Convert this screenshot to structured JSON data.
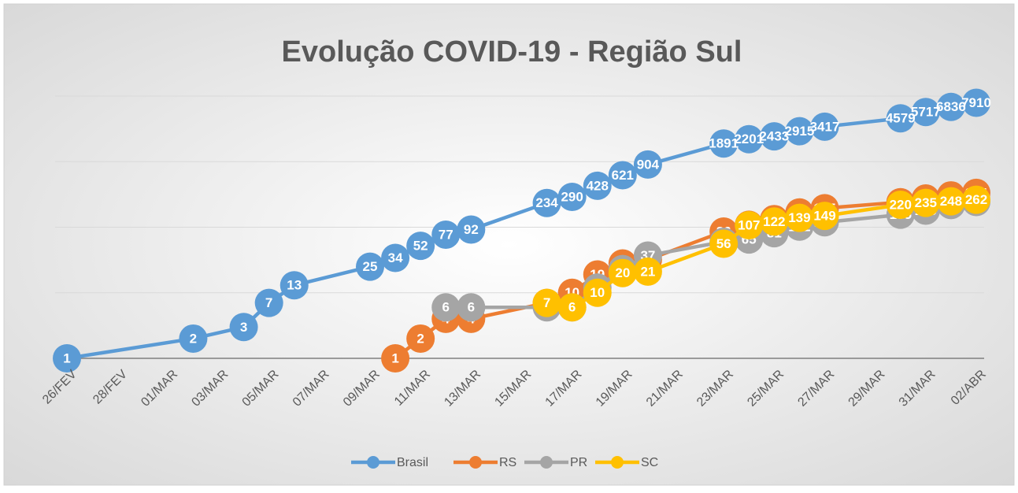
{
  "chart_data": {
    "type": "line",
    "title": "Evolução COVID-19 - Região Sul",
    "categories": [
      "26/FEV",
      null,
      "28/FEV",
      null,
      "01/MAR",
      null,
      "03/MAR",
      null,
      "05/MAR",
      null,
      "07/MAR",
      null,
      "09/MAR",
      null,
      "11/MAR",
      null,
      "13/MAR",
      null,
      "15/MAR",
      null,
      "17/MAR",
      null,
      "19/MAR",
      null,
      "21/MAR",
      null,
      "23/MAR",
      null,
      "25/MAR",
      null,
      "27/MAR",
      null,
      "29/MAR",
      null,
      "31/MAR",
      null,
      "02/ABR"
    ],
    "series": [
      {
        "name": "Brasil",
        "color": "#5b9bd5",
        "values": [
          1,
          null,
          null,
          null,
          null,
          2,
          null,
          3,
          7,
          13,
          null,
          null,
          25,
          34,
          52,
          77,
          92,
          null,
          null,
          234,
          290,
          428,
          621,
          904,
          null,
          null,
          1891,
          2201,
          2433,
          2915,
          3417,
          null,
          null,
          4579,
          5717,
          6836,
          7910
        ]
      },
      {
        "name": "RS",
        "color": "#ed7d31",
        "values": [
          null,
          null,
          null,
          null,
          null,
          null,
          null,
          null,
          null,
          null,
          null,
          null,
          null,
          1,
          2,
          4,
          4,
          null,
          null,
          7,
          10,
          19,
          28,
          32,
          null,
          null,
          86,
          109,
          133,
          168,
          195,
          null,
          null,
          241,
          274,
          306,
          334
        ]
      },
      {
        "name": "PR",
        "color": "#a5a5a5",
        "values": [
          null,
          null,
          null,
          null,
          null,
          null,
          null,
          null,
          null,
          null,
          null,
          null,
          null,
          null,
          null,
          6,
          6,
          null,
          null,
          6,
          6,
          12,
          23,
          37,
          null,
          null,
          60,
          65,
          81,
          102,
          119,
          null,
          null,
          155,
          179,
          218,
          242
        ]
      },
      {
        "name": "SC",
        "color": "#ffc000",
        "values": [
          null,
          null,
          null,
          null,
          null,
          null,
          null,
          null,
          null,
          null,
          null,
          null,
          null,
          null,
          null,
          null,
          null,
          null,
          null,
          7,
          6,
          10,
          20,
          21,
          null,
          null,
          56,
          107,
          122,
          139,
          149,
          null,
          null,
          220,
          235,
          248,
          262
        ]
      }
    ],
    "ylim": [
      1,
      10000
    ],
    "yticks": [
      1,
      10,
      100,
      1000,
      10000
    ],
    "log_y": true,
    "grid": true,
    "connect_gaps": true,
    "legend": "bottom"
  }
}
